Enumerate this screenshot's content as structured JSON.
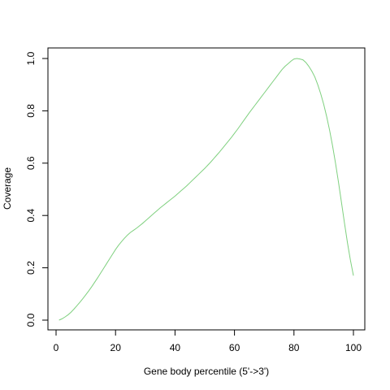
{
  "chart_data": {
    "type": "line",
    "title": "",
    "xlabel": "Gene body percentile (5'->3')",
    "ylabel": "Coverage",
    "xlim": [
      1,
      100
    ],
    "ylim": [
      0,
      1
    ],
    "grid": false,
    "x_ticks": [
      0,
      20,
      40,
      60,
      80,
      100
    ],
    "x_tick_labels": [
      "0",
      "20",
      "40",
      "60",
      "80",
      "100"
    ],
    "y_ticks": [
      0.0,
      0.2,
      0.4,
      0.6,
      0.8,
      1.0
    ],
    "y_tick_labels": [
      "0.0",
      "0.2",
      "0.4",
      "0.6",
      "0.8",
      "1.0"
    ],
    "series": [
      {
        "color": "#7fd07f",
        "x": [
          1,
          2,
          3,
          4,
          5,
          6,
          7,
          8,
          9,
          10,
          11,
          12,
          13,
          14,
          15,
          16,
          17,
          18,
          19,
          20,
          21,
          22,
          23,
          24,
          25,
          26,
          27,
          28,
          29,
          30,
          31,
          32,
          33,
          34,
          35,
          36,
          37,
          38,
          39,
          40,
          41,
          42,
          43,
          44,
          45,
          46,
          47,
          48,
          49,
          50,
          51,
          52,
          53,
          54,
          55,
          56,
          57,
          58,
          59,
          60,
          61,
          62,
          63,
          64,
          65,
          66,
          67,
          68,
          69,
          70,
          71,
          72,
          73,
          74,
          75,
          76,
          77,
          78,
          79,
          80,
          81,
          82,
          83,
          84,
          85,
          86,
          87,
          88,
          89,
          90,
          91,
          92,
          93,
          94,
          95,
          96,
          97,
          98,
          99,
          100
        ],
        "values": [
          0.0,
          0.005,
          0.012,
          0.02,
          0.03,
          0.042,
          0.055,
          0.068,
          0.082,
          0.097,
          0.112,
          0.128,
          0.145,
          0.162,
          0.18,
          0.198,
          0.216,
          0.234,
          0.252,
          0.27,
          0.286,
          0.3,
          0.313,
          0.325,
          0.335,
          0.343,
          0.351,
          0.36,
          0.369,
          0.379,
          0.389,
          0.399,
          0.409,
          0.419,
          0.429,
          0.438,
          0.447,
          0.456,
          0.465,
          0.474,
          0.484,
          0.494,
          0.504,
          0.514,
          0.525,
          0.536,
          0.547,
          0.558,
          0.569,
          0.58,
          0.592,
          0.604,
          0.617,
          0.63,
          0.643,
          0.657,
          0.671,
          0.685,
          0.699,
          0.714,
          0.729,
          0.745,
          0.761,
          0.777,
          0.793,
          0.808,
          0.823,
          0.838,
          0.853,
          0.868,
          0.883,
          0.898,
          0.913,
          0.928,
          0.943,
          0.958,
          0.97,
          0.98,
          0.99,
          0.998,
          1.0,
          0.998,
          0.995,
          0.985,
          0.97,
          0.952,
          0.93,
          0.9,
          0.865,
          0.825,
          0.778,
          0.725,
          0.665,
          0.598,
          0.525,
          0.448,
          0.37,
          0.295,
          0.228,
          0.17
        ]
      }
    ]
  }
}
